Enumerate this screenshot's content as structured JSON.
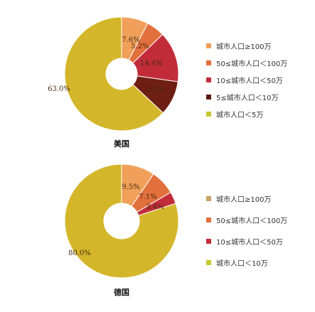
{
  "chart_data": [
    {
      "type": "pie",
      "title": "美国",
      "categories": [
        "城市人口≥100万",
        "50≤城市人口＜100万",
        "10≤城市人口＜50万",
        "5≤城市人口＜10万",
        "城市人口＜5万"
      ],
      "values": [
        7.6,
        5.2,
        14.4,
        9.8,
        63.0
      ],
      "labels": [
        "7.6%",
        "5.2%",
        "14.4%",
        "9.8%",
        "63.0%"
      ],
      "colors": [
        "#F0A05A",
        "#E2703C",
        "#C22C3A",
        "#6E1E12",
        "#D4B62A"
      ],
      "legend_colors": [
        "#F0A05A",
        "#E2703C",
        "#C22C3A",
        "#5A1A10",
        "#C8C832"
      ],
      "legend_position": "right"
    },
    {
      "type": "pie",
      "title": "德国",
      "categories": [
        "城市人口≥100万",
        "50≤城市人口＜100万",
        "10≤城市人口＜50万",
        "城市人口＜10万"
      ],
      "values": [
        9.5,
        7.1,
        3.4,
        80.0
      ],
      "labels": [
        "9.5%",
        "7.1%",
        "3.4%",
        "80.0%"
      ],
      "colors": [
        "#F0A05A",
        "#E2703C",
        "#C22C3A",
        "#D4B62A"
      ],
      "legend_colors": [
        "#C8A060",
        "#E2703C",
        "#C22C3A",
        "#C8C832"
      ],
      "legend_position": "right"
    }
  ]
}
